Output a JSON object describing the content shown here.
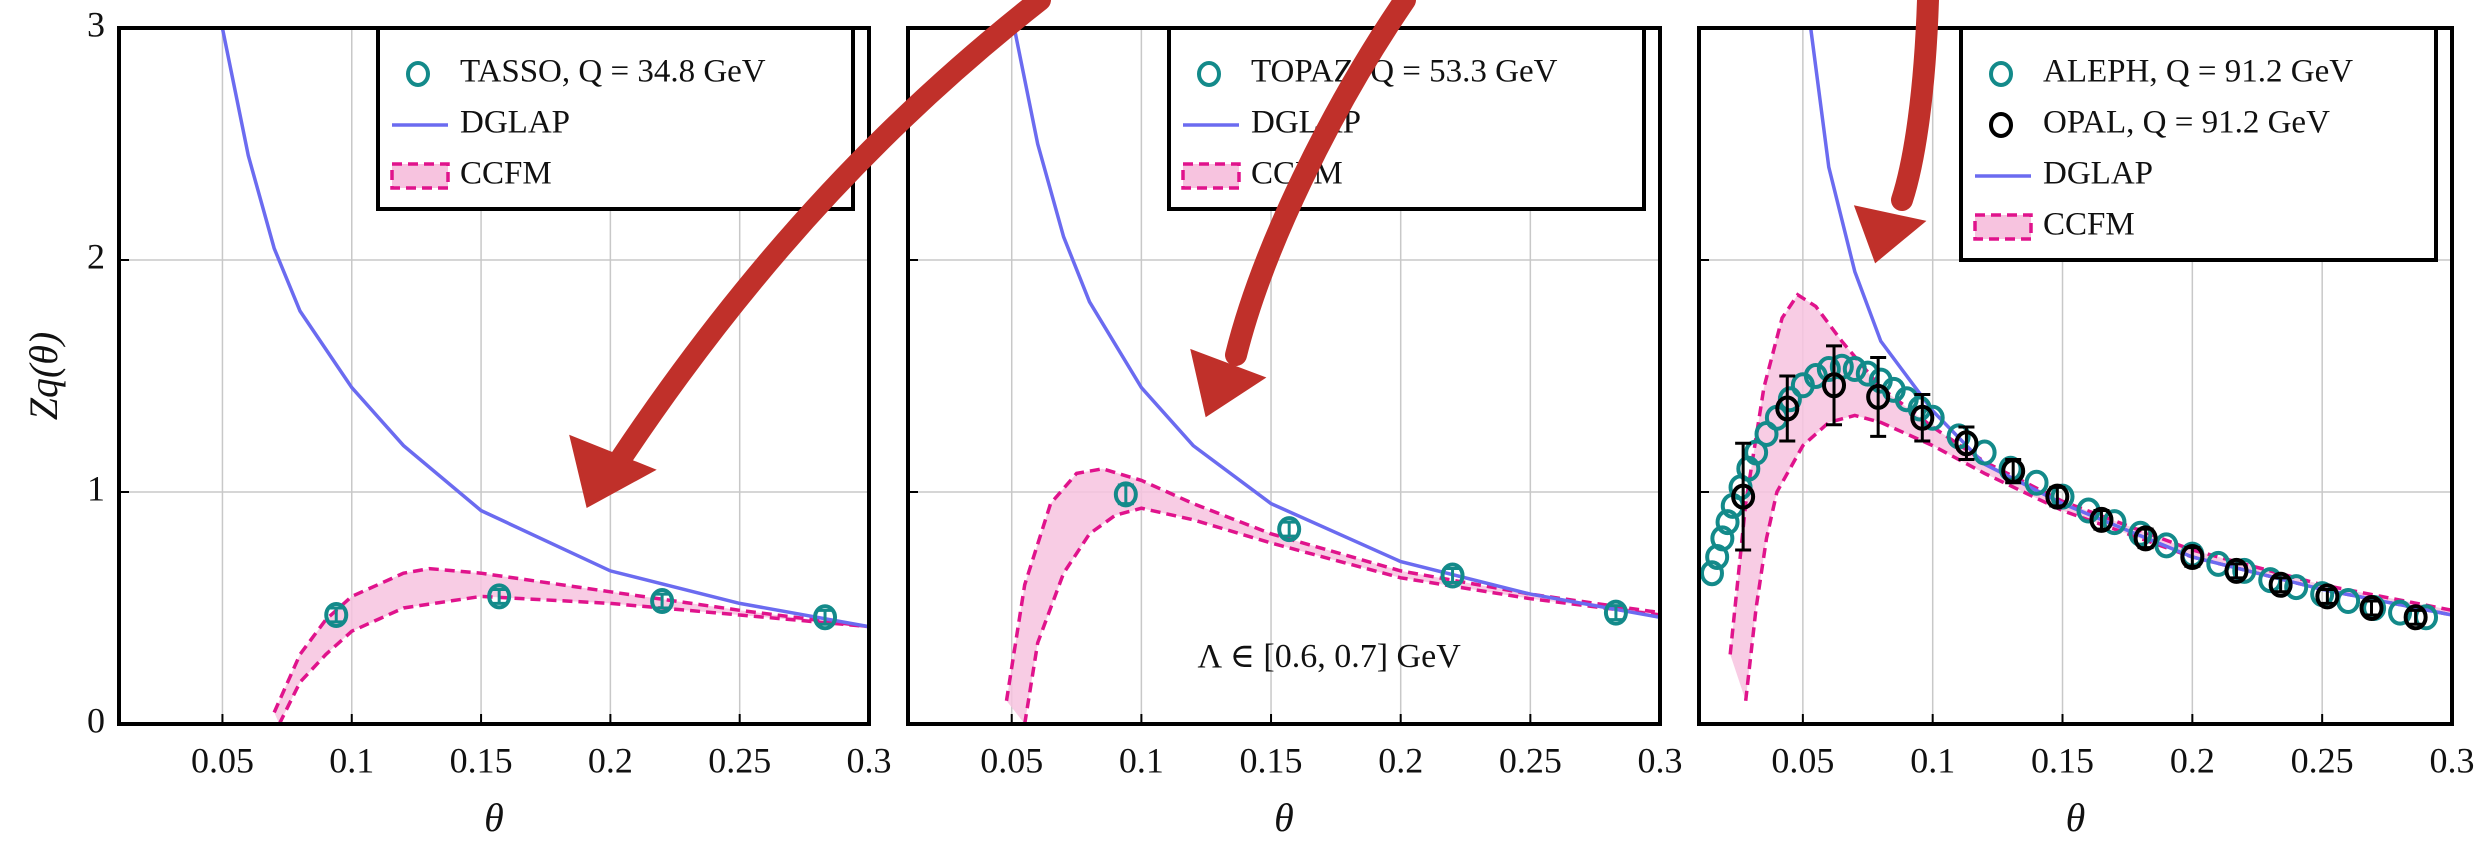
{
  "chart_data": [
    {
      "type": "line",
      "ylabel": "Zq(θ)",
      "xlabel": "θ",
      "xlim": [
        0.01,
        0.3
      ],
      "ylim": [
        0,
        3
      ],
      "xticks": [
        0.05,
        0.1,
        0.15,
        0.2,
        0.25,
        0.3
      ],
      "yticks": [
        0,
        1,
        2,
        3
      ],
      "show_yticklabels": true,
      "grid": true,
      "legend": "upper right",
      "series": [
        {
          "name": "TASSO, Q = 34.8 GeV",
          "type": "scatter",
          "color": "#138a8a",
          "x": [
            0.094,
            0.157,
            0.22,
            0.283
          ],
          "values": [
            0.47,
            0.55,
            0.53,
            0.46
          ],
          "errors": [
            0.03,
            0.03,
            0.03,
            0.03
          ]
        },
        {
          "name": "DGLAP",
          "type": "line",
          "color": "#6b6bf0",
          "x": [
            0.05,
            0.06,
            0.07,
            0.08,
            0.1,
            0.12,
            0.15,
            0.2,
            0.25,
            0.3
          ],
          "values": [
            3.0,
            2.45,
            2.05,
            1.78,
            1.45,
            1.2,
            0.92,
            0.66,
            0.52,
            0.42
          ]
        },
        {
          "name": "CCFM",
          "type": "band",
          "color": "#e0138c",
          "fill": "#f7c3df",
          "lower": {
            "x": [
              0.072,
              0.08,
              0.09,
              0.1,
              0.12,
              0.15,
              0.2,
              0.25,
              0.3
            ],
            "values": [
              0,
              0.18,
              0.3,
              0.4,
              0.5,
              0.55,
              0.52,
              0.47,
              0.42
            ]
          },
          "upper": {
            "x": [
              0.07,
              0.08,
              0.09,
              0.1,
              0.12,
              0.13,
              0.15,
              0.2,
              0.25,
              0.3
            ],
            "values": [
              0.05,
              0.3,
              0.45,
              0.55,
              0.65,
              0.67,
              0.65,
              0.57,
              0.49,
              0.42
            ]
          }
        }
      ]
    },
    {
      "type": "line",
      "xlabel": "θ",
      "annotation": "Λ ∈ [0.6, 0.7] GeV",
      "xlim": [
        0.01,
        0.3
      ],
      "ylim": [
        0,
        3
      ],
      "xticks": [
        0.05,
        0.1,
        0.15,
        0.2,
        0.25,
        0.3
      ],
      "yticks": [
        0,
        1,
        2,
        3
      ],
      "show_yticklabels": false,
      "grid": true,
      "legend": "upper right",
      "series": [
        {
          "name": "TOPAZ, Q = 53.3 GeV",
          "type": "scatter",
          "color": "#138a8a",
          "x": [
            0.094,
            0.157,
            0.22,
            0.283
          ],
          "values": [
            0.99,
            0.84,
            0.64,
            0.48
          ],
          "errors": [
            0.04,
            0.03,
            0.03,
            0.03
          ]
        },
        {
          "name": "DGLAP",
          "type": "line",
          "color": "#6b6bf0",
          "x": [
            0.051,
            0.06,
            0.07,
            0.08,
            0.1,
            0.12,
            0.15,
            0.2,
            0.25,
            0.3
          ],
          "values": [
            3.0,
            2.5,
            2.1,
            1.82,
            1.45,
            1.2,
            0.95,
            0.7,
            0.56,
            0.46
          ]
        },
        {
          "name": "CCFM",
          "type": "band",
          "color": "#e0138c",
          "fill": "#f7c3df",
          "lower": {
            "x": [
              0.055,
              0.06,
              0.07,
              0.08,
              0.09,
              0.1,
              0.12,
              0.15,
              0.2,
              0.25,
              0.3
            ],
            "values": [
              0,
              0.35,
              0.65,
              0.82,
              0.9,
              0.93,
              0.88,
              0.78,
              0.63,
              0.54,
              0.47
            ]
          },
          "upper": {
            "x": [
              0.048,
              0.055,
              0.065,
              0.075,
              0.085,
              0.1,
              0.12,
              0.15,
              0.2,
              0.25,
              0.3
            ],
            "values": [
              0.1,
              0.6,
              0.95,
              1.08,
              1.1,
              1.05,
              0.95,
              0.82,
              0.66,
              0.56,
              0.48
            ]
          }
        }
      ]
    },
    {
      "type": "line",
      "xlabel": "θ",
      "xlim": [
        0.01,
        0.3
      ],
      "ylim": [
        0,
        3
      ],
      "xticks": [
        0.05,
        0.1,
        0.15,
        0.2,
        0.25,
        0.3
      ],
      "yticks": [
        0,
        1,
        2,
        3
      ],
      "show_yticklabels": false,
      "grid": true,
      "legend": "upper right",
      "series": [
        {
          "name": "ALEPH, Q = 91.2 GeV",
          "type": "scatter",
          "color": "#138a8a",
          "x": [
            0.015,
            0.017,
            0.019,
            0.021,
            0.023,
            0.026,
            0.029,
            0.032,
            0.036,
            0.04,
            0.045,
            0.05,
            0.055,
            0.06,
            0.065,
            0.07,
            0.075,
            0.08,
            0.085,
            0.09,
            0.095,
            0.1,
            0.11,
            0.12,
            0.13,
            0.14,
            0.15,
            0.16,
            0.17,
            0.18,
            0.19,
            0.2,
            0.21,
            0.22,
            0.23,
            0.24,
            0.25,
            0.26,
            0.27,
            0.28,
            0.29
          ],
          "values": [
            0.65,
            0.72,
            0.8,
            0.87,
            0.94,
            1.02,
            1.1,
            1.17,
            1.25,
            1.32,
            1.4,
            1.46,
            1.5,
            1.53,
            1.54,
            1.53,
            1.51,
            1.48,
            1.44,
            1.4,
            1.36,
            1.32,
            1.24,
            1.17,
            1.1,
            1.04,
            0.98,
            0.92,
            0.87,
            0.82,
            0.77,
            0.73,
            0.69,
            0.66,
            0.62,
            0.59,
            0.56,
            0.53,
            0.5,
            0.48,
            0.46
          ]
        },
        {
          "name": "OPAL, Q = 91.2 GeV",
          "type": "scatter",
          "color": "#000000",
          "x": [
            0.027,
            0.044,
            0.062,
            0.079,
            0.096,
            0.113,
            0.131,
            0.148,
            0.165,
            0.182,
            0.2,
            0.217,
            0.234,
            0.252,
            0.269,
            0.286
          ],
          "values": [
            0.98,
            1.36,
            1.46,
            1.41,
            1.32,
            1.21,
            1.09,
            0.98,
            0.88,
            0.8,
            0.72,
            0.66,
            0.6,
            0.55,
            0.5,
            0.46
          ],
          "errors": [
            0.23,
            0.14,
            0.17,
            0.17,
            0.1,
            0.07,
            0.05,
            0.04,
            0.04,
            0.04,
            0.04,
            0.03,
            0.03,
            0.03,
            0.03,
            0.03
          ]
        },
        {
          "name": "DGLAP",
          "type": "line",
          "color": "#6b6bf0",
          "x": [
            0.053,
            0.06,
            0.07,
            0.08,
            0.1,
            0.12,
            0.15,
            0.2,
            0.25,
            0.3
          ],
          "values": [
            3.0,
            2.4,
            1.95,
            1.65,
            1.35,
            1.12,
            0.95,
            0.72,
            0.58,
            0.47
          ]
        },
        {
          "name": "CCFM",
          "type": "band",
          "color": "#e0138c",
          "fill": "#f7c3df",
          "lower": {
            "x": [
              0.028,
              0.032,
              0.036,
              0.04,
              0.05,
              0.06,
              0.07,
              0.08,
              0.1,
              0.12,
              0.15,
              0.2,
              0.25,
              0.3
            ],
            "values": [
              0.1,
              0.5,
              0.8,
              1.0,
              1.2,
              1.3,
              1.33,
              1.3,
              1.2,
              1.08,
              0.92,
              0.72,
              0.58,
              0.47
            ]
          },
          "upper": {
            "x": [
              0.022,
              0.028,
              0.035,
              0.042,
              0.048,
              0.055,
              0.065,
              0.08,
              0.1,
              0.12,
              0.15,
              0.2,
              0.25,
              0.3
            ],
            "values": [
              0.3,
              0.95,
              1.45,
              1.75,
              1.85,
              1.8,
              1.65,
              1.45,
              1.28,
              1.13,
              0.96,
              0.75,
              0.6,
              0.49
            ]
          }
        }
      ]
    }
  ]
}
